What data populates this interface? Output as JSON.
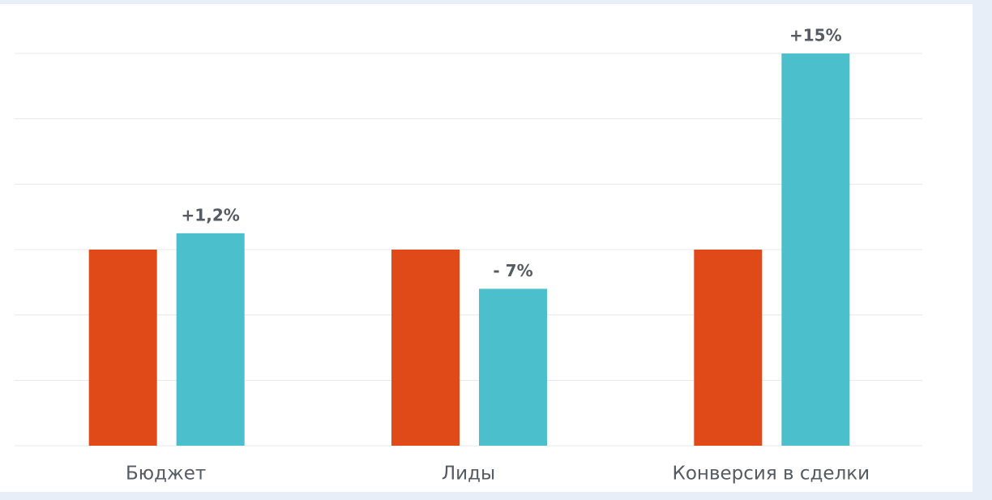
{
  "chart_data": {
    "type": "bar",
    "categories": [
      "Бюджет",
      "Лиды",
      "Конверсия в сделки"
    ],
    "series": [
      {
        "color": "#e04a18",
        "values": [
          3,
          3,
          3
        ]
      },
      {
        "color": "#4bbfcc",
        "values": [
          3.25,
          2.4,
          6
        ],
        "annotations": [
          "+1,2%",
          "- 7%",
          "+15%"
        ]
      }
    ],
    "ylim": [
      0,
      6
    ],
    "yticks": [
      0,
      1,
      2,
      3,
      4,
      5,
      6
    ],
    "grid": true
  }
}
